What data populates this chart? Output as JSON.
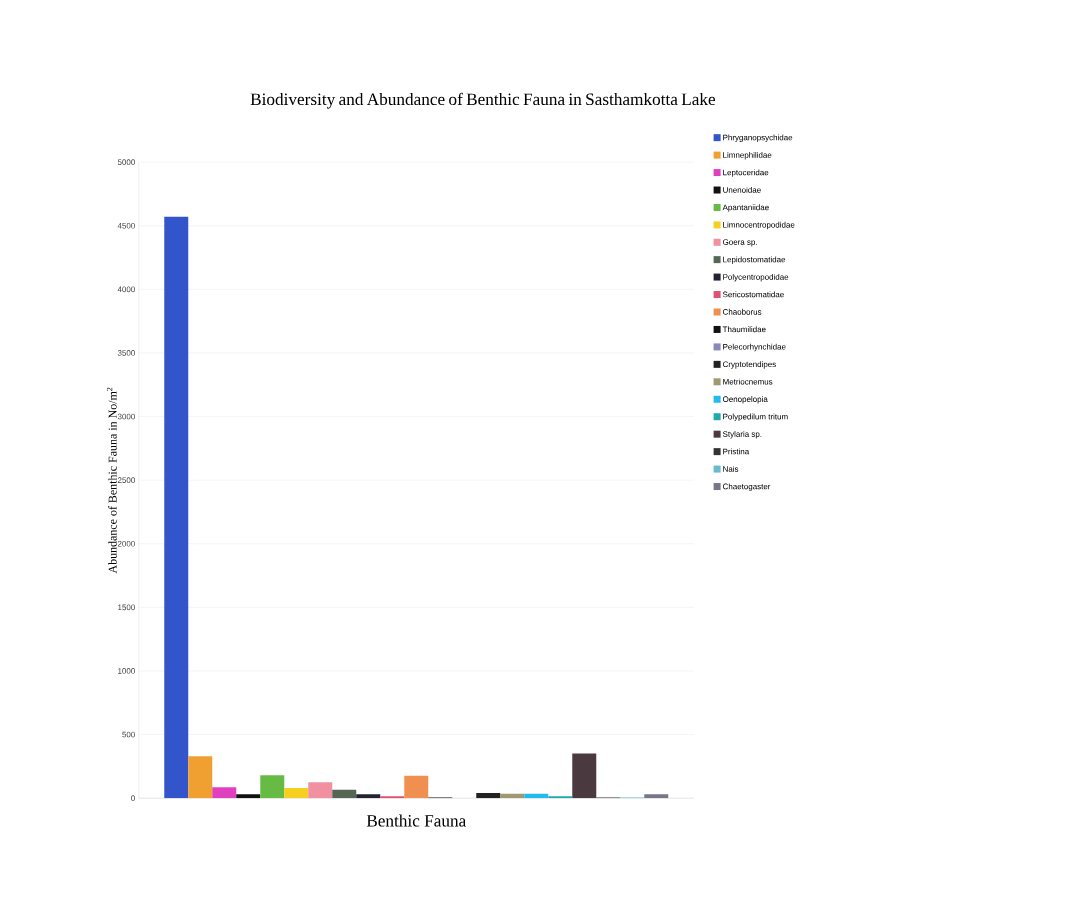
{
  "chart_data": {
    "type": "bar",
    "title": "Biodiversity  and Abundance of Benthic Fauna in Sasthamkotta Lake",
    "xlabel": "Benthic Fauna",
    "ylabel": "Abundance of Benthic Fauna in No/m$^{2}$",
    "categories": [
      null
    ],
    "ylim": [
      0,
      5000
    ],
    "yticks": [
      0,
      500,
      1000,
      1500,
      2000,
      2500,
      3000,
      3500,
      4000,
      4500,
      5000
    ],
    "grid": "y",
    "legend": "right",
    "series": [
      {
        "name": "Phryganopsychidae",
        "color": "#3355cc",
        "values": [
          4570
        ]
      },
      {
        "name": "Limnephilidae",
        "color": "#f0a030",
        "values": [
          330
        ]
      },
      {
        "name": "Leptoceridae",
        "color": "#e040c0",
        "values": [
          85
        ]
      },
      {
        "name": "Unenoidae",
        "color": "#111111",
        "values": [
          30
        ]
      },
      {
        "name": "Apantaniidae",
        "color": "#66bb44",
        "values": [
          180
        ]
      },
      {
        "name": "Limnocentropodidae",
        "color": "#f5d020",
        "values": [
          80
        ]
      },
      {
        "name": "Goera sp.",
        "color": "#f090a0",
        "values": [
          125
        ]
      },
      {
        "name": "Lepidostomatidae",
        "color": "#556655",
        "values": [
          65
        ]
      },
      {
        "name": "Polycentropodidae",
        "color": "#222233",
        "values": [
          30
        ]
      },
      {
        "name": "Sericostomatidae",
        "color": "#e05070",
        "values": [
          15
        ]
      },
      {
        "name": "Chaoborus",
        "color": "#f09050",
        "values": [
          175
        ]
      },
      {
        "name": "Thaumilidae",
        "color": "#111111",
        "values": [
          5
        ]
      },
      {
        "name": "Pelecorhynchidae",
        "color": "#8888bb",
        "values": [
          0
        ]
      },
      {
        "name": "Cryptotendipes",
        "color": "#222222",
        "values": [
          40
        ]
      },
      {
        "name": "Metriocnemus",
        "color": "#a09870",
        "values": [
          35
        ]
      },
      {
        "name": "Oenopelopia",
        "color": "#22bbee",
        "values": [
          35
        ]
      },
      {
        "name": "Polypedilum tritum",
        "color": "#22aaaa",
        "values": [
          15
        ]
      },
      {
        "name": "Stylaria sp.",
        "color": "#4a3a40",
        "values": [
          350
        ]
      },
      {
        "name": "Pristina",
        "color": "#333333",
        "values": [
          5
        ]
      },
      {
        "name": "Nais",
        "color": "#66bbcc",
        "values": [
          5
        ]
      },
      {
        "name": "Chaetogaster",
        "color": "#777788",
        "values": [
          30
        ]
      }
    ]
  }
}
